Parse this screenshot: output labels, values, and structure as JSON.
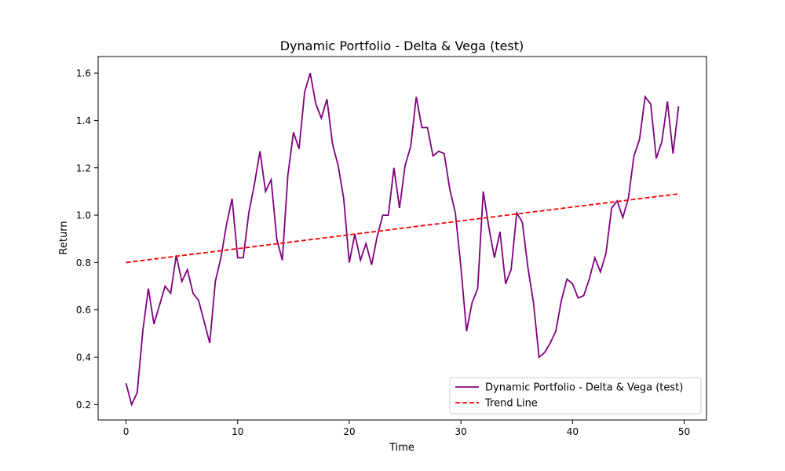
{
  "chart_data": {
    "type": "line",
    "title": "Dynamic Portfolio - Delta & Vega (test)",
    "xlabel": "Time",
    "ylabel": "Return",
    "xlim": [
      -2.5,
      52.0
    ],
    "ylim": [
      0.135,
      1.67
    ],
    "xticks": [
      0,
      10,
      20,
      30,
      40,
      50
    ],
    "xtick_labels": [
      "0",
      "10",
      "20",
      "30",
      "40",
      "50"
    ],
    "yticks": [
      0.2,
      0.4,
      0.6,
      0.8,
      1.0,
      1.2,
      1.4,
      1.6
    ],
    "ytick_labels": [
      "0.2",
      "0.4",
      "0.6",
      "0.8",
      "1.0",
      "1.2",
      "1.4",
      "1.6"
    ],
    "grid": false,
    "legend_position": "lower-right",
    "series": [
      {
        "name": "Dynamic Portfolio - Delta & Vega (test)",
        "color": "#800080",
        "style": "solid",
        "x": [
          0,
          0.5,
          1,
          1.5,
          2,
          2.5,
          3,
          3.5,
          4,
          4.5,
          5,
          5.5,
          6,
          6.5,
          7,
          7.5,
          8,
          8.5,
          9,
          9.5,
          10,
          10.5,
          11,
          11.5,
          12,
          12.5,
          13,
          13.5,
          14,
          14.5,
          15,
          15.5,
          16,
          16.5,
          17,
          17.5,
          18,
          18.5,
          19,
          19.5,
          20,
          20.5,
          21,
          21.5,
          22,
          22.5,
          23,
          23.5,
          24,
          24.5,
          25,
          25.5,
          26,
          26.5,
          27,
          27.5,
          28,
          28.5,
          29,
          29.5,
          30,
          30.5,
          31,
          31.5,
          32,
          32.5,
          33,
          33.5,
          34,
          34.5,
          35,
          35.5,
          36,
          36.5,
          37,
          37.5,
          38,
          38.5,
          39,
          39.5,
          40,
          40.5,
          41,
          41.5,
          42,
          42.5,
          43,
          43.5,
          44,
          44.5,
          45,
          45.5,
          46,
          46.5,
          47,
          47.5,
          48,
          48.5,
          49,
          49.5
        ],
        "values": [
          0.29,
          0.2,
          0.25,
          0.51,
          0.69,
          0.54,
          0.62,
          0.7,
          0.67,
          0.83,
          0.72,
          0.77,
          0.67,
          0.64,
          0.55,
          0.46,
          0.72,
          0.82,
          0.96,
          1.07,
          0.82,
          0.82,
          1.01,
          1.13,
          1.27,
          1.1,
          1.15,
          0.9,
          0.81,
          1.17,
          1.35,
          1.28,
          1.52,
          1.6,
          1.47,
          1.41,
          1.49,
          1.3,
          1.21,
          1.07,
          0.8,
          0.92,
          0.81,
          0.88,
          0.79,
          0.91,
          1.0,
          1.0,
          1.2,
          1.03,
          1.21,
          1.29,
          1.5,
          1.37,
          1.37,
          1.25,
          1.27,
          1.26,
          1.11,
          1.01,
          0.78,
          0.51,
          0.63,
          0.69,
          1.1,
          0.95,
          0.82,
          0.93,
          0.71,
          0.77,
          1.01,
          0.97,
          0.78,
          0.63,
          0.4,
          0.42,
          0.46,
          0.51,
          0.64,
          0.73,
          0.71,
          0.65,
          0.66,
          0.73,
          0.82,
          0.76,
          0.84,
          1.03,
          1.06,
          0.99,
          1.07,
          1.25,
          1.32,
          1.5,
          1.47,
          1.24,
          1.31,
          1.48,
          1.26,
          1.46
        ]
      },
      {
        "name": "Trend Line",
        "color": "#ff0000",
        "style": "dashed",
        "x": [
          0,
          49.5
        ],
        "values": [
          0.8,
          1.09
        ]
      }
    ]
  }
}
